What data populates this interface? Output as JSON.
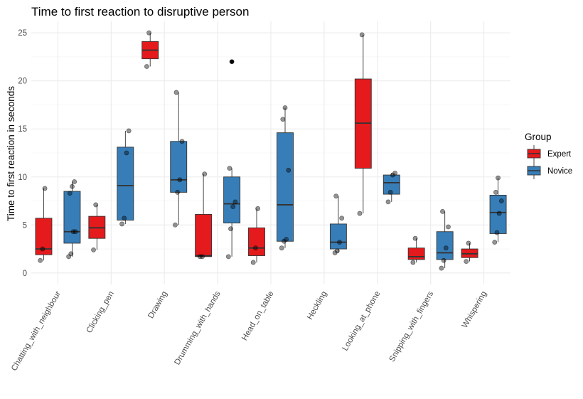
{
  "chart_data": {
    "type": "box",
    "title": "Time to first reaction to disruptive person",
    "xlabel": "",
    "ylabel": "Time to first reaction in seconds",
    "ylim": [
      -1.2,
      26.2
    ],
    "yticks": [
      0,
      5,
      10,
      15,
      20,
      25
    ],
    "ytick_labels": [
      "0",
      "5",
      "10",
      "15",
      "20",
      "25"
    ],
    "grid": true,
    "legend": {
      "title": "Group",
      "position": "right"
    },
    "colors": {
      "Expert": "#E41A1C",
      "Novice": "#377EB8"
    },
    "categories": [
      "Chatting_with_neighbour",
      "Clicking_pen",
      "Drawing",
      "Drumming_with_hands",
      "Head_on_table",
      "Heckling",
      "Looking_at_phone",
      "Snipping_with_fingers",
      "Whispering"
    ],
    "series": [
      {
        "name": "Expert",
        "boxes": [
          {
            "category": "Chatting_with_neighbour",
            "min": 1.3,
            "q1": 1.9,
            "median": 2.5,
            "q3": 5.7,
            "max": 8.8,
            "outliers": [],
            "points": [
              1.3,
              2.5,
              8.8
            ]
          },
          {
            "category": "Clicking_pen",
            "min": 2.4,
            "q1": 3.6,
            "median": 4.7,
            "q3": 5.9,
            "max": 7.1,
            "outliers": [],
            "points": [
              2.4,
              7.1
            ]
          },
          {
            "category": "Drawing",
            "min": 21.5,
            "q1": 22.3,
            "median": 23.2,
            "q3": 24.1,
            "max": 25.0,
            "outliers": [],
            "points": [
              21.5,
              25.0
            ]
          },
          {
            "category": "Drumming_with_hands",
            "min": 1.7,
            "q1": 1.7,
            "median": 1.8,
            "q3": 6.1,
            "max": 10.3,
            "outliers": [],
            "points": [
              1.7,
              1.7,
              10.3
            ]
          },
          {
            "category": "Head_on_table",
            "min": 1.1,
            "q1": 1.8,
            "median": 2.6,
            "q3": 4.7,
            "max": 6.7,
            "outliers": [],
            "points": [
              1.1,
              2.6,
              6.7
            ]
          },
          {
            "category": "Looking_at_phone",
            "min": 6.2,
            "q1": 10.9,
            "median": 15.6,
            "q3": 20.2,
            "max": 24.8,
            "outliers": [],
            "points": [
              6.2,
              24.8
            ]
          },
          {
            "category": "Snipping_with_fingers",
            "min": 1.1,
            "q1": 1.4,
            "median": 1.7,
            "q3": 2.6,
            "max": 3.6,
            "outliers": [],
            "points": [
              1.1,
              3.6
            ]
          },
          {
            "category": "Whispering",
            "min": 1.2,
            "q1": 1.6,
            "median": 2.0,
            "q3": 2.5,
            "max": 3.1,
            "outliers": [],
            "points": [
              1.2,
              3.1
            ]
          }
        ]
      },
      {
        "name": "Novice",
        "boxes": [
          {
            "category": "Chatting_with_neighbour",
            "min": 1.7,
            "q1": 3.1,
            "median": 4.3,
            "q3": 8.5,
            "max": 9.5,
            "outliers": [],
            "points": [
              1.7,
              2.0,
              4.3,
              4.3,
              8.3,
              9.0,
              9.5
            ]
          },
          {
            "category": "Clicking_pen",
            "min": 5.1,
            "q1": 5.5,
            "median": 9.1,
            "q3": 13.1,
            "max": 14.8,
            "outliers": [],
            "points": [
              5.1,
              5.7,
              12.5,
              14.8
            ]
          },
          {
            "category": "Drawing",
            "min": 5.0,
            "q1": 8.4,
            "median": 9.7,
            "q3": 13.7,
            "max": 18.8,
            "outliers": [],
            "points": [
              5.0,
              8.4,
              9.7,
              13.7,
              18.8
            ]
          },
          {
            "category": "Drumming_with_hands",
            "min": 1.7,
            "q1": 5.2,
            "median": 7.2,
            "q3": 10.0,
            "max": 10.9,
            "outliers": [
              22.0
            ],
            "points": [
              1.7,
              4.6,
              6.9,
              7.4,
              10.9,
              22.0
            ]
          },
          {
            "category": "Head_on_table",
            "min": 2.6,
            "q1": 3.3,
            "median": 7.1,
            "q3": 14.6,
            "max": 17.2,
            "outliers": [],
            "points": [
              2.6,
              3.3,
              3.5,
              10.7,
              16.0,
              17.2
            ]
          },
          {
            "category": "Heckling",
            "min": 2.1,
            "q1": 2.5,
            "median": 3.2,
            "q3": 5.1,
            "max": 8.0,
            "outliers": [],
            "points": [
              2.1,
              2.3,
              3.2,
              5.7,
              8.0
            ]
          },
          {
            "category": "Looking_at_phone",
            "min": 7.4,
            "q1": 8.2,
            "median": 9.4,
            "q3": 10.2,
            "max": 10.4,
            "outliers": [],
            "points": [
              7.4,
              8.4,
              10.2,
              10.4
            ]
          },
          {
            "category": "Snipping_with_fingers",
            "min": 0.5,
            "q1": 1.4,
            "median": 2.1,
            "q3": 4.3,
            "max": 6.4,
            "outliers": [],
            "points": [
              0.5,
              1.3,
              2.6,
              4.8,
              6.4
            ]
          },
          {
            "category": "Whispering",
            "min": 3.2,
            "q1": 4.1,
            "median": 6.3,
            "q3": 8.1,
            "max": 9.9,
            "outliers": [],
            "points": [
              3.2,
              4.2,
              6.2,
              7.5,
              8.4,
              9.9
            ]
          }
        ]
      }
    ]
  }
}
